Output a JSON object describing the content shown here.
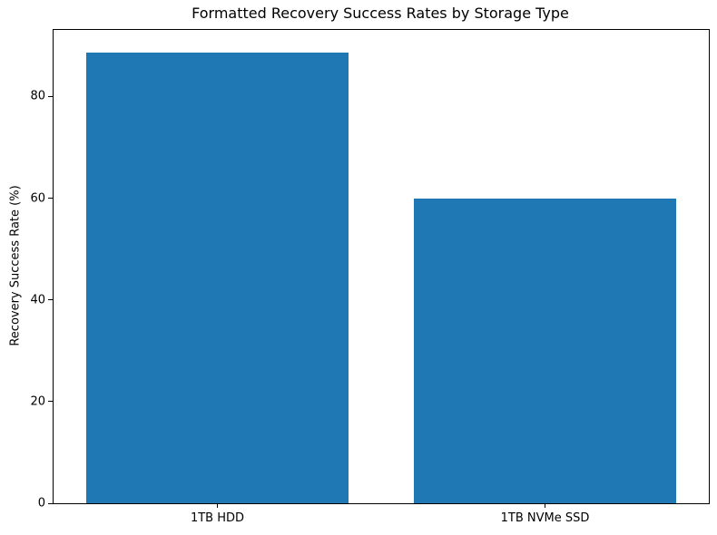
{
  "chart_data": {
    "type": "bar",
    "title": "Formatted Recovery Success Rates by Storage Type",
    "xlabel": "",
    "ylabel": "Recovery Success Rate (%)",
    "categories": [
      "1TB HDD",
      "1TB NVMe SSD"
    ],
    "values": [
      88.7,
      60
    ],
    "yticks": [
      0,
      20,
      40,
      60,
      80
    ],
    "ylim": [
      0,
      93.1
    ],
    "bar_color": "#1f77b4",
    "bar_width_fraction": 0.8,
    "grid": false,
    "legend": false,
    "background_color": "#ffffff",
    "axis_color": "#000000"
  }
}
